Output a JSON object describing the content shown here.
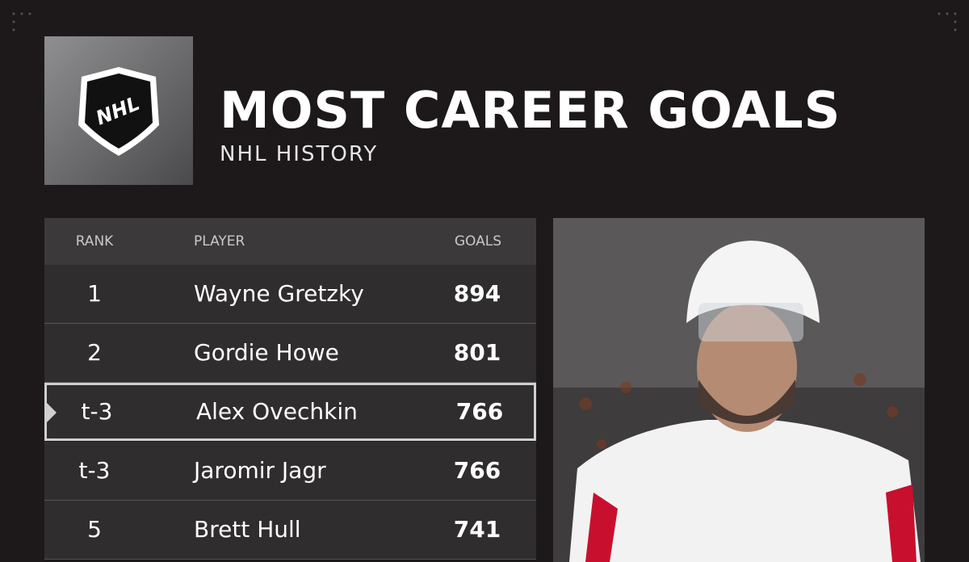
{
  "header": {
    "logo": "NHL",
    "title": "MOST CAREER GOALS",
    "subtitle": "NHL HISTORY"
  },
  "table": {
    "columns": [
      "RANK",
      "PLAYER",
      "GOALS"
    ],
    "rows": [
      [
        1,
        "Wayne Gretzky",
        894
      ],
      [
        2,
        "Gordie Howe",
        801
      ],
      [
        "t-3",
        "Alex Ovechkin",
        766
      ],
      [
        "t-3",
        "Jaromir Jagr",
        766
      ],
      [
        5,
        "Brett Hull",
        741
      ]
    ],
    "highlighted_row": 2
  }
}
